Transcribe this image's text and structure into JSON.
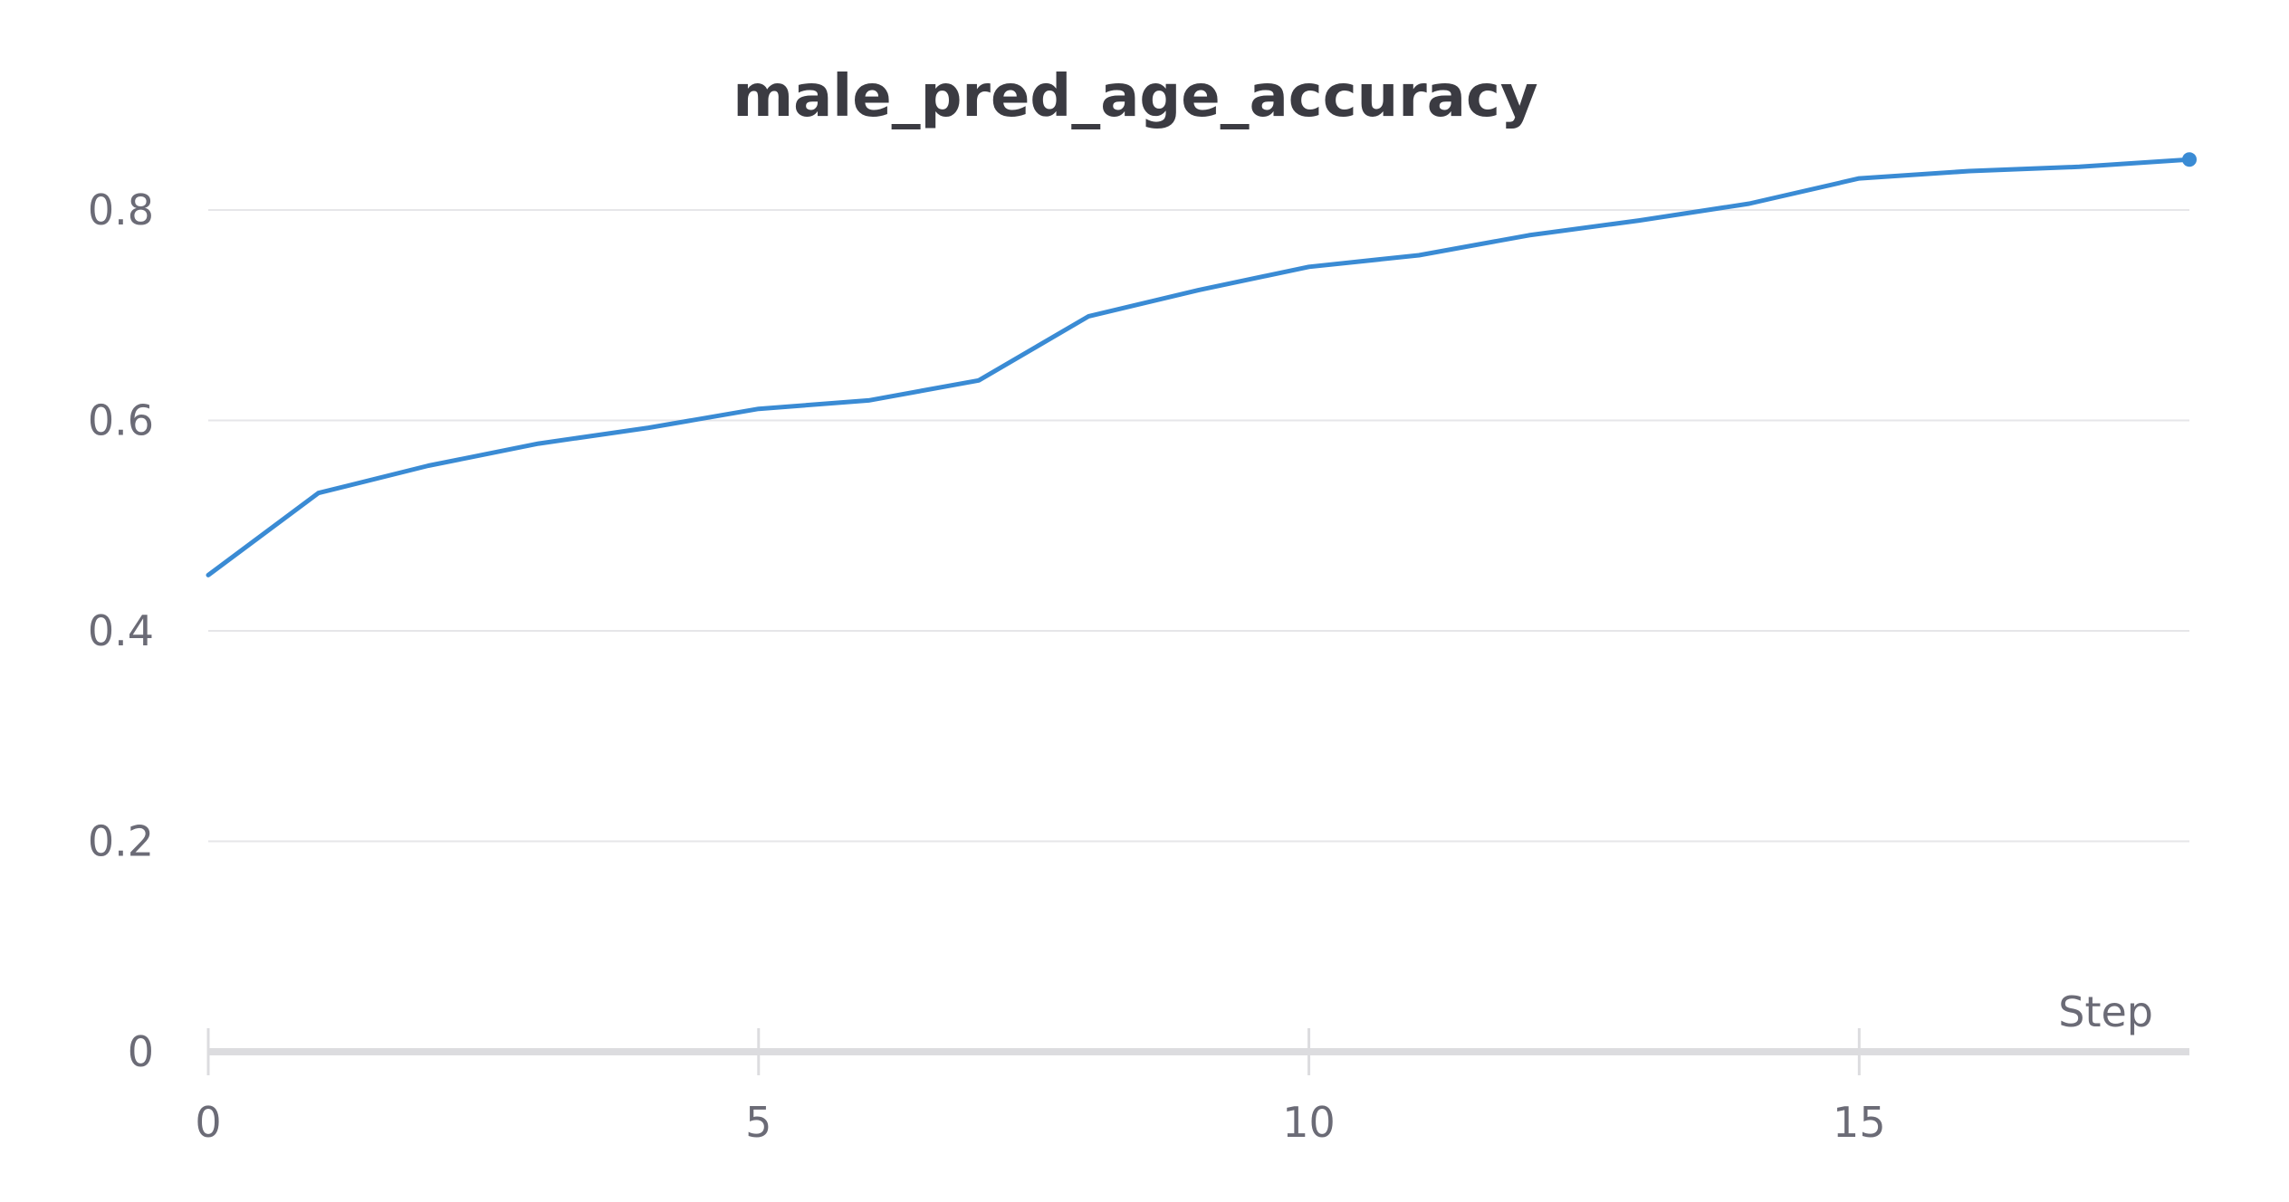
{
  "chart_data": {
    "type": "line",
    "title": "male_pred_age_accuracy",
    "xlabel": "Step",
    "ylabel": "",
    "xlim": [
      0,
      18
    ],
    "ylim": [
      0,
      0.85
    ],
    "x_ticks": [
      0,
      5,
      10,
      15
    ],
    "x_tick_labels": [
      "0",
      "5",
      "10",
      "15"
    ],
    "y_ticks": [
      0,
      0.2,
      0.4,
      0.6,
      0.8
    ],
    "y_tick_labels": [
      "0",
      "0.2",
      "0.4",
      "0.6",
      "0.8"
    ],
    "grid": true,
    "legend": "none",
    "series": [
      {
        "color": "#3a8bd4",
        "x": [
          0,
          1,
          2,
          3,
          4,
          5,
          6,
          7,
          8,
          9,
          10,
          11,
          12,
          13,
          14,
          15,
          16,
          17,
          18
        ],
        "values": [
          0.453,
          0.531,
          0.557,
          0.578,
          0.593,
          0.611,
          0.619,
          0.638,
          0.699,
          0.724,
          0.746,
          0.757,
          0.776,
          0.79,
          0.806,
          0.83,
          0.837,
          0.841,
          0.848
        ]
      }
    ]
  }
}
